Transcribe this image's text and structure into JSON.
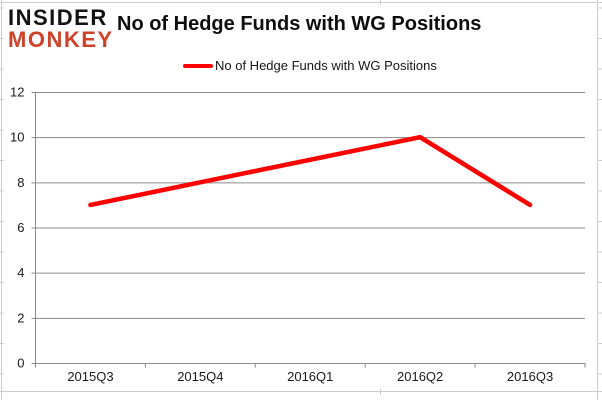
{
  "brand": {
    "line1": "INSIDER",
    "line2": "MONKEY",
    "line1_color": "#121212",
    "line2_color": "#cf4228"
  },
  "header": {
    "title": "No of Hedge Funds with WG Positions"
  },
  "legend": {
    "label": "No of Hedge Funds with WG Positions",
    "swatch_color": "#fe0000"
  },
  "chart_data": {
    "type": "line",
    "title": "No of Hedge Funds with WG Positions",
    "categories": [
      "2015Q3",
      "2015Q4",
      "2016Q1",
      "2016Q2",
      "2016Q3"
    ],
    "series": [
      {
        "name": "No of Hedge Funds with WG Positions",
        "values": [
          7,
          8,
          9,
          10,
          7
        ],
        "color": "#fe0000",
        "line_width": 4.5
      }
    ],
    "xlabel": "",
    "ylabel": "",
    "ylim": [
      0,
      12
    ],
    "yticks": [
      0,
      2,
      4,
      6,
      8,
      10,
      12
    ],
    "grid": true,
    "legend_position": "top"
  },
  "style": {
    "gridline_color": "#8a8a8a",
    "axis_color": "#8a8a8a",
    "tick_label_color": "#1a1a1a",
    "frame_remnant_color": "#cccccc",
    "background": "#ffffff"
  }
}
